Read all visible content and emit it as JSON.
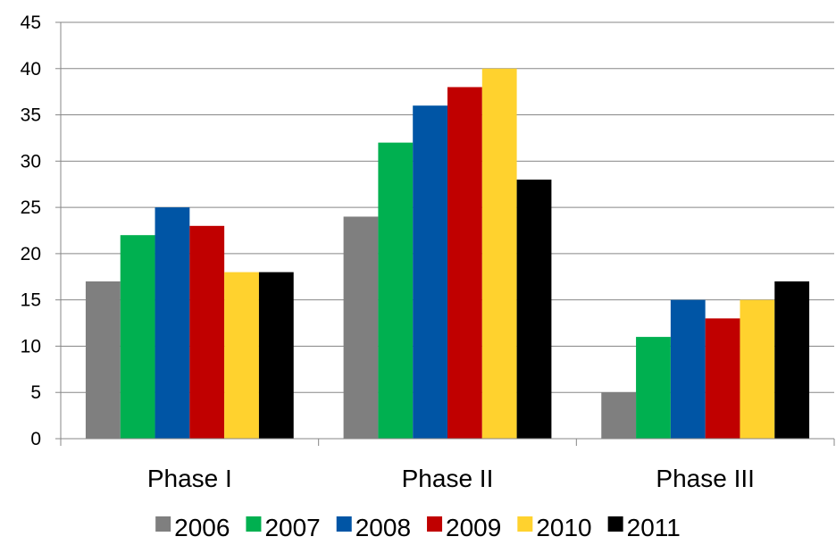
{
  "chart_data": {
    "type": "bar",
    "categories": [
      "Phase I",
      "Phase II",
      "Phase III"
    ],
    "series": [
      {
        "name": "2006",
        "color": "#7f7f7f",
        "values": [
          17,
          24,
          5
        ]
      },
      {
        "name": "2007",
        "color": "#00b050",
        "values": [
          22,
          32,
          11
        ]
      },
      {
        "name": "2008",
        "color": "#0055a5",
        "values": [
          25,
          36,
          15
        ]
      },
      {
        "name": "2009",
        "color": "#c00000",
        "values": [
          23,
          38,
          13
        ]
      },
      {
        "name": "2010",
        "color": "#ffd22e",
        "values": [
          18,
          40,
          15
        ]
      },
      {
        "name": "2011",
        "color": "#000000",
        "values": [
          18,
          28,
          17
        ]
      }
    ],
    "title": "",
    "xlabel": "",
    "ylabel": "",
    "ylim": [
      0,
      45
    ],
    "yticks": [
      0,
      5,
      10,
      15,
      20,
      25,
      30,
      35,
      40,
      45
    ],
    "grid": true,
    "legend": "bottom"
  }
}
